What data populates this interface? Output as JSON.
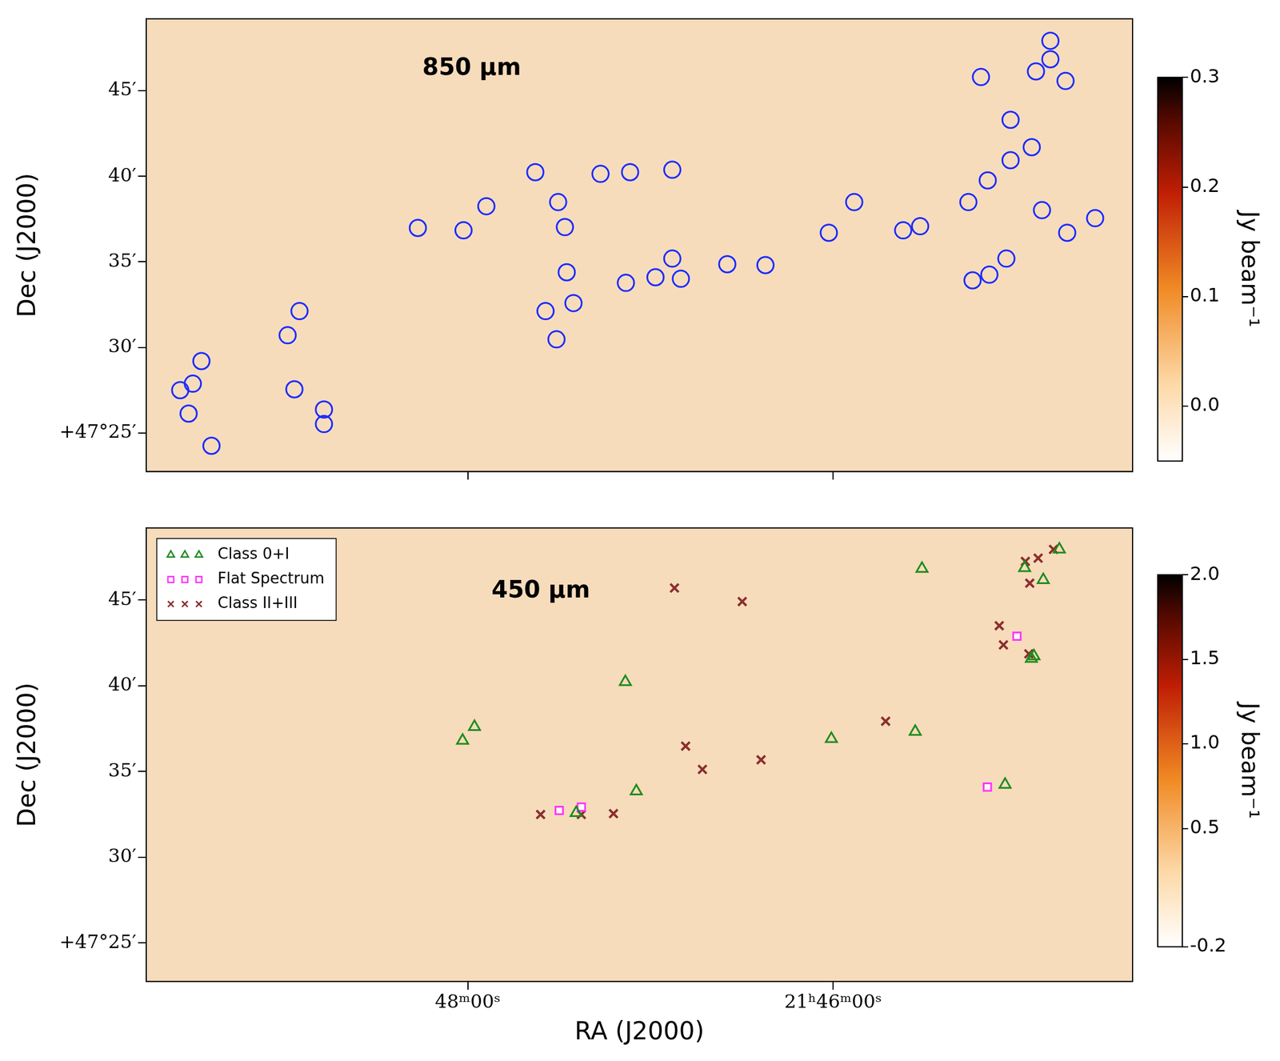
{
  "chart_data": [
    {
      "type": "scatter",
      "title": "850 μm",
      "ylabel": "Dec (J2000)",
      "xlim": [
        1309.76,
        1304.36
      ],
      "xticks": [
        1308,
        1306
      ],
      "ylim": [
        22.75,
        49.2
      ],
      "yticks": [
        {
          "value": 25,
          "label": "+47°25′"
        },
        {
          "value": 30,
          "label": "30′"
        },
        {
          "value": 35,
          "label": "35′"
        },
        {
          "value": 40,
          "label": "40′"
        },
        {
          "value": 45,
          "label": "45′"
        }
      ],
      "tick_labels": "y",
      "grid": false,
      "series": [
        {
          "color": "#1a2cff",
          "marker": "circle",
          "x": [
            1309.458,
            1309.574,
            1309.505,
            1309.528,
            1309.403,
            1308.986,
            1308.921,
            1308.949,
            1308.787,
            1308.787,
            1308.273,
            1308.023,
            1307.898,
            1307.63,
            1307.505,
            1307.468,
            1307.458,
            1307.421,
            1307.574,
            1307.514,
            1307.273,
            1307.111,
            1306.88,
            1307.134,
            1306.972,
            1306.88,
            1306.833,
            1306.579,
            1306.37,
            1306.023,
            1305.884,
            1305.616,
            1305.523,
            1305.236,
            1305.144,
            1305.051,
            1305.259,
            1305.153,
            1305.028,
            1304.912,
            1305.028,
            1305.19,
            1304.889,
            1304.81,
            1304.81,
            1304.727,
            1304.856,
            1304.718,
            1304.565
          ],
          "values": [
            29.2,
            27.5,
            27.88,
            26.13,
            24.25,
            30.71,
            32.12,
            27.55,
            26.37,
            25.52,
            36.98,
            36.84,
            38.25,
            40.24,
            38.49,
            37.03,
            34.39,
            32.59,
            32.12,
            30.47,
            40.14,
            40.24,
            40.38,
            33.77,
            34.1,
            35.19,
            34.01,
            34.86,
            34.81,
            36.7,
            38.49,
            36.84,
            37.08,
            33.92,
            34.25,
            35.19,
            38.49,
            39.76,
            40.94,
            41.7,
            43.3,
            45.8,
            46.13,
            47.92,
            46.84,
            45.57,
            38.02,
            36.7,
            37.55
          ]
        }
      ],
      "colorbar": {
        "label": "Jy beam⁻¹",
        "range": [
          -0.05,
          0.3
        ],
        "ticks": [
          {
            "value": 0,
            "label": "0.0"
          },
          0.1,
          0.2,
          0.3
        ]
      }
    },
    {
      "type": "scatter",
      "title": "450 μm",
      "xlabel": "RA (J2000)",
      "ylabel": "Dec (J2000)",
      "xlim": [
        1309.76,
        1304.36
      ],
      "xticks": [
        {
          "value": 1308,
          "label": "48ᵐ00ˢ"
        },
        {
          "value": 1306,
          "label": "21ʰ46ᵐ00ˢ"
        }
      ],
      "ylim": [
        22.75,
        49.2
      ],
      "yticks": [
        {
          "value": 25,
          "label": "+47°25′"
        },
        {
          "value": 30,
          "label": "30′"
        },
        {
          "value": 35,
          "label": "35′"
        },
        {
          "value": 40,
          "label": "40′"
        },
        {
          "value": 45,
          "label": "45′"
        }
      ],
      "tick_labels": true,
      "grid": false,
      "legend": "upper left",
      "series": [
        {
          "name": "Class 0+I",
          "color": "#1e8c1e",
          "marker": "triangle",
          "x": [
            1308.028,
            1307.963,
            1307.137,
            1307.077,
            1307.406,
            1306.009,
            1305.55,
            1305.513,
            1305.058,
            1304.951,
            1304.849,
            1304.9,
            1304.914,
            1304.761
          ],
          "values": [
            36.8,
            37.6,
            40.22,
            33.85,
            32.59,
            36.9,
            37.32,
            46.83,
            34.23,
            46.87,
            46.17,
            41.72,
            41.58,
            47.95
          ]
        },
        {
          "name": "Flat Spectrum",
          "color": "#ff33ff",
          "marker": "square",
          "x": [
            1307.499,
            1307.378,
            1305.155,
            1304.993
          ],
          "values": [
            32.73,
            32.92,
            34.09,
            42.89
          ]
        },
        {
          "name": "Class II+III",
          "color": "#8b2f2f",
          "marker": "x",
          "x": [
            1307.601,
            1307.378,
            1307.202,
            1306.868,
            1306.497,
            1306.807,
            1306.715,
            1306.394,
            1305.712,
            1305.09,
            1305.067,
            1304.928,
            1304.947,
            1304.877,
            1304.923,
            1304.793
          ],
          "values": [
            32.49,
            32.49,
            32.54,
            45.7,
            44.91,
            36.48,
            35.12,
            35.68,
            37.93,
            43.5,
            42.38,
            41.86,
            47.25,
            47.44,
            45.98,
            47.95
          ]
        }
      ],
      "colorbar": {
        "label": "Jy beam⁻¹",
        "range": [
          -0.2,
          2.0
        ],
        "ticks": [
          -0.2,
          0.5,
          {
            "value": 1,
            "label": "1.0"
          },
          1.5,
          {
            "value": 2,
            "label": "2.0"
          }
        ]
      }
    }
  ]
}
